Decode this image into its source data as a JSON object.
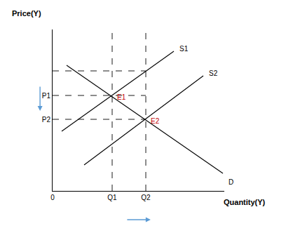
{
  "chart_data": {
    "type": "line",
    "x_label": "Quantity(Y)",
    "y_label": "Price(Y)",
    "xlim": [
      0,
      245
    ],
    "ylim": [
      0,
      230
    ],
    "xticks": [
      0,
      {
        "value": 85,
        "label": "Q1"
      },
      {
        "value": 133,
        "label": "Q2"
      }
    ],
    "yticks": [
      {
        "value": 102,
        "label": "P2"
      },
      {
        "value": 136,
        "label": "P1"
      }
    ],
    "grid": false,
    "series": [
      {
        "name": "S1",
        "color": "#000000",
        "line_style": "solid",
        "x": [
          13,
          173
        ],
        "values": [
          85,
          199
        ]
      },
      {
        "name": "S2",
        "color": "#000000",
        "line_style": "solid",
        "x": [
          45,
          215
        ],
        "values": [
          37,
          164
        ]
      },
      {
        "name": "D",
        "color": "#000000",
        "line_style": "solid",
        "x": [
          20,
          243
        ],
        "values": [
          179,
          25
        ]
      },
      {
        "color": "#000000",
        "line_style": "dashed",
        "x": [
          0,
          133
        ],
        "values": [
          171,
          171
        ]
      },
      {
        "color": "#000000",
        "line_style": "dashed",
        "x": [
          0,
          133
        ],
        "values": [
          136,
          136
        ]
      },
      {
        "color": "#000000",
        "line_style": "dashed",
        "x": [
          0,
          133
        ],
        "values": [
          102,
          102
        ]
      },
      {
        "color": "#000000",
        "line_style": "dashed",
        "x": [
          85,
          85
        ],
        "values": [
          0,
          230
        ]
      },
      {
        "color": "#000000",
        "line_style": "dashed",
        "x": [
          133,
          133
        ],
        "values": [
          0,
          230
        ]
      }
    ],
    "points": [
      {
        "label": "E1",
        "x": 85,
        "y": 136,
        "color": "#c00000"
      },
      {
        "label": "E2",
        "x": 133,
        "y": 102,
        "color": "#c00000"
      }
    ]
  }
}
